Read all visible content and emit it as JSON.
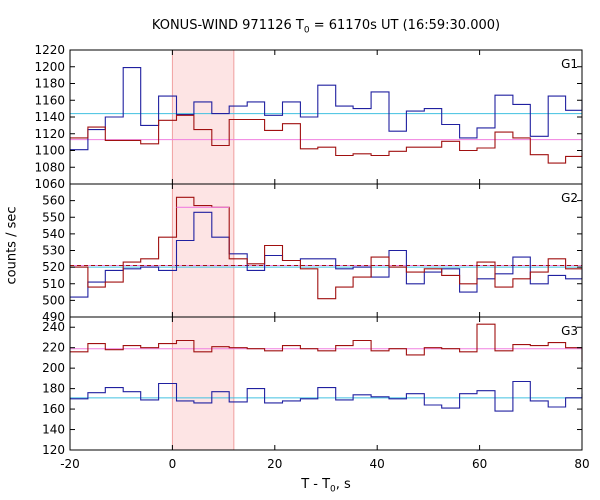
{
  "title": {
    "prefix": "KONUS-WIND 971126 T",
    "sub": "0",
    "suffix": " = 61170s UT (16:59:30.000)"
  },
  "xlabel": {
    "prefix": "T - T",
    "sub": "0",
    "suffix": ", s"
  },
  "ylabel": "counts / sec",
  "colors": {
    "dark_red": "#a01010",
    "dark_blue": "#2020a0",
    "cyan": "#40c0e0",
    "pink": "#f080e0",
    "highlight": "#fde4e4",
    "highlight_edge": "#f0a0a0",
    "dashed": "#a01010"
  },
  "chart_data": [
    {
      "type": "line",
      "panel_label": "G1",
      "x_edges": [
        -20,
        -16.5,
        -13.1,
        -9.6,
        -6.2,
        -2.7,
        0.8,
        4.2,
        7.7,
        11.1,
        14.6,
        18.0,
        21.5,
        25.0,
        28.4,
        31.9,
        35.3,
        38.8,
        42.3,
        45.7,
        49.2,
        52.6,
        56.1,
        59.5,
        63.0,
        66.5,
        69.9,
        73.4,
        76.8,
        80.0
      ],
      "x_range": [
        -20,
        80
      ],
      "ylim": [
        1060,
        1220
      ],
      "yticks": [
        1060,
        1080,
        1100,
        1120,
        1140,
        1160,
        1180,
        1200,
        1220
      ],
      "bg_levels": [
        1144,
        1113
      ],
      "series": [
        {
          "color": "dark_blue",
          "values": [
            1101,
            1125,
            1140,
            1199,
            1130,
            1165,
            1143,
            1158,
            1144,
            1153,
            1158,
            1142,
            1158,
            1140,
            1178,
            1153,
            1150,
            1170,
            1123,
            1147,
            1150,
            1131,
            1115,
            1127,
            1166,
            1155,
            1117,
            1165,
            1148,
            1160
          ]
        },
        {
          "color": "dark_red",
          "values": [
            1115,
            1128,
            1112,
            1112,
            1108,
            1136,
            1142,
            1125,
            1106,
            1137,
            1137,
            1124,
            1132,
            1102,
            1104,
            1094,
            1096,
            1094,
            1099,
            1104,
            1104,
            1111,
            1100,
            1103,
            1122,
            1115,
            1095,
            1085,
            1093,
            1097
          ]
        }
      ]
    },
    {
      "type": "line",
      "panel_label": "G2",
      "x_edges": [
        -20,
        -16.5,
        -13.1,
        -9.6,
        -6.2,
        -2.7,
        0.8,
        4.2,
        7.7,
        11.1,
        14.6,
        18.0,
        21.5,
        25.0,
        28.4,
        31.9,
        35.3,
        38.8,
        42.3,
        45.7,
        49.2,
        52.6,
        56.1,
        59.5,
        63.0,
        66.5,
        69.9,
        73.4,
        76.8,
        80.0
      ],
      "x_range": [
        -20,
        80
      ],
      "ylim": [
        490,
        570
      ],
      "yticks": [
        490,
        500,
        510,
        520,
        530,
        540,
        550,
        560
      ],
      "bg_levels": [
        520,
        521
      ],
      "series": [
        {
          "color": "dark_blue",
          "values": [
            502,
            511,
            518,
            519,
            520,
            518,
            536,
            553,
            538,
            528,
            518,
            527,
            524,
            525,
            525,
            519,
            520,
            514,
            530,
            510,
            517,
            519,
            505,
            513,
            516,
            526,
            510,
            515,
            513,
            519
          ]
        },
        {
          "color": "dark_red",
          "values": [
            520,
            508,
            511,
            523,
            525,
            538,
            562,
            557,
            556,
            525,
            522,
            533,
            524,
            519,
            501,
            508,
            514,
            526,
            520,
            517,
            519,
            515,
            510,
            523,
            508,
            513,
            517,
            525,
            519,
            519
          ]
        },
        {
          "color": "pink",
          "values": [
            556,
            556,
            556
          ],
          "x_edges_override": [
            0.8,
            4.2,
            7.7,
            11.1
          ]
        }
      ]
    },
    {
      "type": "line",
      "panel_label": "G3",
      "x_edges": [
        -20,
        -16.5,
        -13.1,
        -9.6,
        -6.2,
        -2.7,
        0.8,
        4.2,
        7.7,
        11.1,
        14.6,
        18.0,
        21.5,
        25.0,
        28.4,
        31.9,
        35.3,
        38.8,
        42.3,
        45.7,
        49.2,
        52.6,
        56.1,
        59.5,
        63.0,
        66.5,
        69.9,
        73.4,
        76.8,
        80.0
      ],
      "x_range": [
        -20,
        80
      ],
      "ylim": [
        120,
        250
      ],
      "yticks": [
        120,
        140,
        160,
        180,
        200,
        220,
        240
      ],
      "bg_levels": [
        171,
        219
      ],
      "series": [
        {
          "color": "dark_blue",
          "values": [
            170,
            176,
            181,
            177,
            169,
            185,
            168,
            166,
            177,
            167,
            180,
            166,
            168,
            170,
            181,
            169,
            174,
            172,
            170,
            175,
            164,
            161,
            175,
            178,
            158,
            187,
            168,
            162,
            171,
            175
          ]
        },
        {
          "color": "dark_red",
          "values": [
            216,
            224,
            218,
            222,
            220,
            224,
            227,
            216,
            221,
            220,
            219,
            217,
            222,
            219,
            217,
            222,
            227,
            217,
            219,
            213,
            220,
            219,
            216,
            243,
            217,
            223,
            222,
            225,
            220,
            206
          ]
        }
      ]
    }
  ],
  "xaxis": {
    "ticks": [
      -20,
      0,
      20,
      40,
      60,
      80
    ],
    "range": [
      -20,
      80
    ]
  },
  "highlight": {
    "x0": 0,
    "x1": 12
  }
}
